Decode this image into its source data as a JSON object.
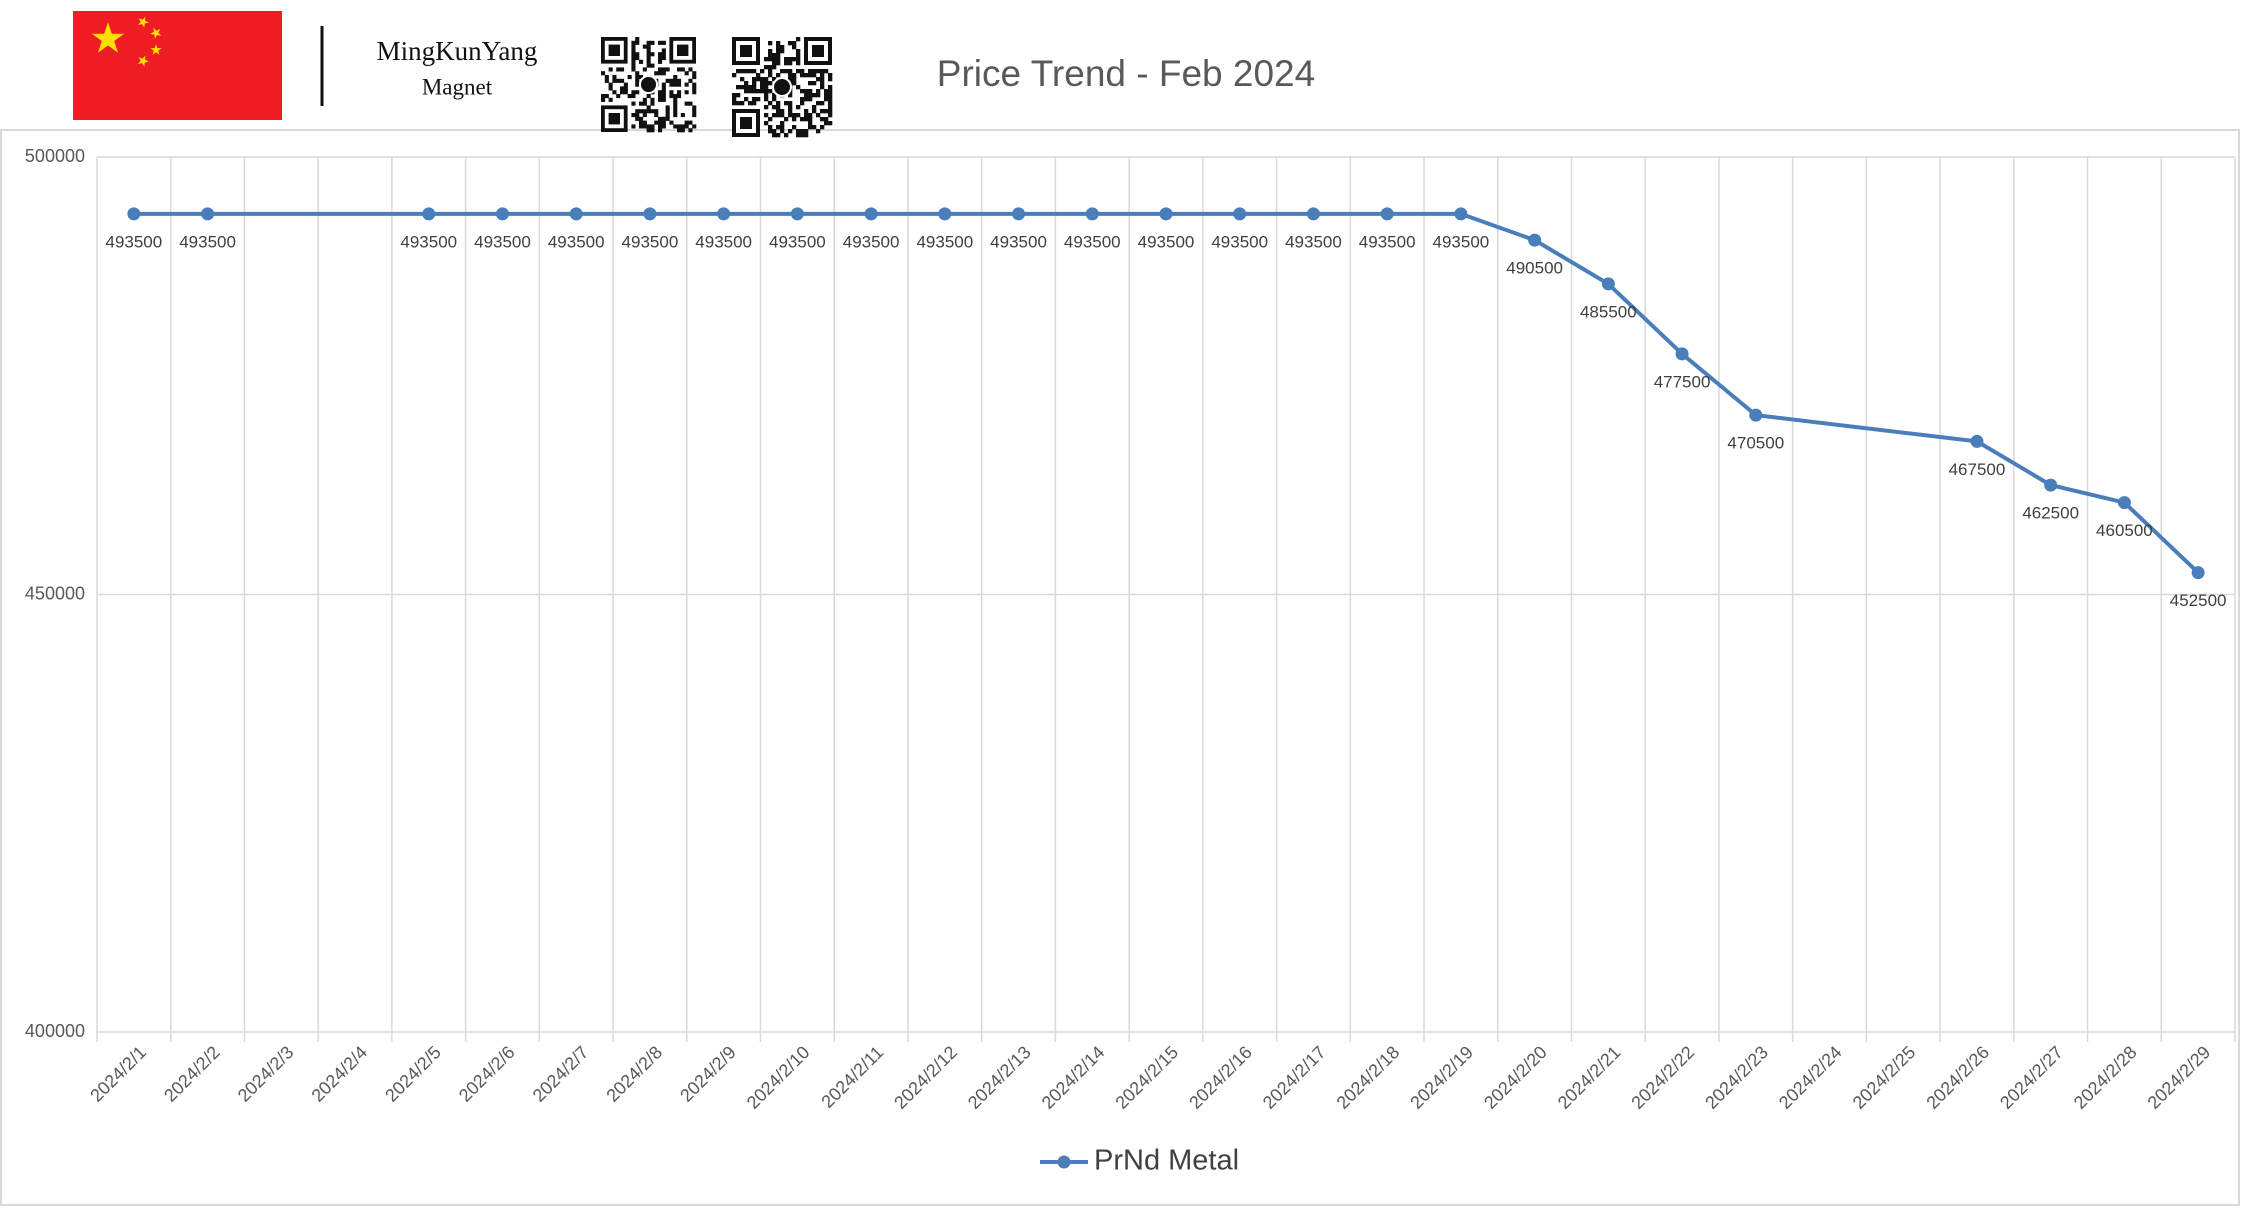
{
  "header": {
    "brand_line1": "MingKunYang",
    "brand_line2": "Magnet"
  },
  "chart_data": {
    "type": "line",
    "title": "Price Trend - Feb 2024",
    "categories": [
      "2024/2/1",
      "2024/2/2",
      "2024/2/3",
      "2024/2/4",
      "2024/2/5",
      "2024/2/6",
      "2024/2/7",
      "2024/2/8",
      "2024/2/9",
      "2024/2/10",
      "2024/2/11",
      "2024/2/12",
      "2024/2/13",
      "2024/2/14",
      "2024/2/15",
      "2024/2/16",
      "2024/2/17",
      "2024/2/18",
      "2024/2/19",
      "2024/2/20",
      "2024/2/21",
      "2024/2/22",
      "2024/2/23",
      "2024/2/24",
      "2024/2/25",
      "2024/2/26",
      "2024/2/27",
      "2024/2/28",
      "2024/2/29"
    ],
    "series": [
      {
        "name": "PrNd Metal",
        "color": "#4a7ebb",
        "values": [
          493500,
          493500,
          null,
          null,
          493500,
          493500,
          493500,
          493500,
          493500,
          493500,
          493500,
          493500,
          493500,
          493500,
          493500,
          493500,
          493500,
          493500,
          493500,
          490500,
          485500,
          477500,
          470500,
          null,
          null,
          467500,
          462500,
          460500,
          452500
        ]
      }
    ],
    "ylim": [
      400000,
      500000
    ],
    "yticks": [
      400000,
      450000,
      500000
    ],
    "grid": true,
    "span_gaps": true,
    "data_labels": true,
    "legend": "bottom"
  }
}
